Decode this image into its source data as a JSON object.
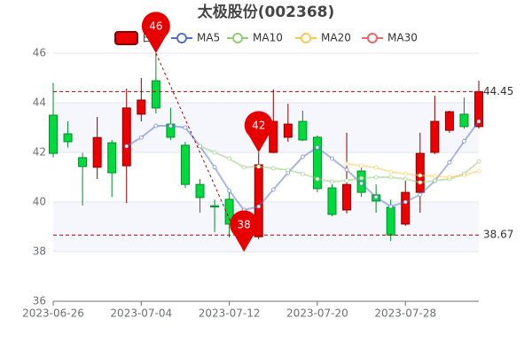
{
  "chart_data": {
    "type": "candlestick",
    "title": "太极股份(002368)",
    "categories": [
      "2023-06-26",
      null,
      null,
      null,
      null,
      null,
      "2023-07-04",
      null,
      null,
      null,
      null,
      null,
      "2023-07-12",
      null,
      null,
      null,
      null,
      null,
      "2023-07-20",
      null,
      null,
      null,
      null,
      null,
      "2023-07-28",
      null,
      null,
      null,
      null,
      null
    ],
    "series": [
      {
        "name": "日K",
        "up_color": "#ec0000",
        "up_border": "#8a0000",
        "down_color": "#00da3c",
        "down_border": "#008f28",
        "open": [
          43.5,
          42.75,
          41.79,
          41.4,
          42.39,
          41.46,
          43.54,
          44.89,
          43.14,
          42.29,
          40.71,
          39.85,
          40.11,
          39.2,
          38.6,
          42.0,
          42.61,
          43.25,
          42.61,
          40.57,
          39.68,
          41.25,
          40.29,
          39.79,
          39.11,
          40.39,
          42.0,
          42.89,
          43.54,
          43.04
        ],
        "close": [
          41.96,
          42.43,
          41.43,
          42.6,
          41.18,
          43.79,
          44.11,
          43.79,
          42.61,
          40.71,
          40.18,
          39.8,
          39.11,
          38.75,
          41.5,
          43.25,
          43.14,
          42.5,
          40.54,
          39.5,
          40.71,
          40.39,
          40.04,
          38.67,
          40.39,
          41.96,
          43.25,
          43.64,
          43.04,
          44.45
        ],
        "high": [
          44.8,
          43.25,
          41.98,
          43.43,
          42.5,
          44.57,
          45.0,
          46,
          43.8,
          42.43,
          40.93,
          40.1,
          40.46,
          39.3,
          42,
          44.54,
          43.96,
          43.68,
          42.68,
          40.71,
          42.79,
          41.5,
          40.71,
          40.1,
          41.0,
          42.79,
          44.29,
          43.68,
          44.21,
          44.89
        ],
        "low": [
          41.8,
          42.2,
          39.86,
          40.93,
          40.2,
          39.96,
          43.25,
          43.57,
          42.5,
          40.57,
          39.57,
          38.79,
          38.57,
          38,
          38.5,
          41.96,
          42.43,
          42.46,
          40.4,
          39.43,
          39.54,
          40.21,
          39.57,
          38.43,
          39.04,
          39.57,
          41.93,
          42.79,
          42.96,
          42.96
        ]
      }
    ],
    "ma_series": [
      {
        "name": "MA5",
        "color": "#5470c6",
        "values": [
          null,
          null,
          null,
          null,
          null,
          42.25,
          42.6,
          43.07,
          43.07,
          43.0,
          42.25,
          41.4,
          40.46,
          39.68,
          39.82,
          40.5,
          41.18,
          41.82,
          42.2,
          41.75,
          41.3,
          40.75,
          40.2,
          39.82,
          40.0,
          40.3,
          40.85,
          41.6,
          42.45,
          43.25
        ]
      },
      {
        "name": "MA10",
        "color": "#91cc75",
        "values": [
          null,
          null,
          null,
          null,
          null,
          null,
          null,
          null,
          null,
          null,
          42.25,
          42.0,
          41.75,
          41.4,
          41.43,
          41.36,
          41.29,
          41.14,
          40.93,
          40.82,
          40.86,
          40.96,
          41.0,
          41.0,
          40.93,
          40.79,
          40.86,
          40.93,
          41.14,
          41.64
        ]
      },
      {
        "name": "MA20",
        "color": "#fac858",
        "values": [
          null,
          null,
          null,
          null,
          null,
          null,
          null,
          null,
          null,
          null,
          null,
          null,
          null,
          null,
          null,
          null,
          null,
          null,
          null,
          null,
          41.54,
          41.46,
          41.39,
          41.21,
          41.14,
          41.07,
          41.04,
          41.0,
          41.07,
          41.25
        ]
      },
      {
        "name": "MA30",
        "color": "#ee6666",
        "values": [
          null,
          null,
          null,
          null,
          null,
          null,
          null,
          null,
          null,
          null,
          null,
          null,
          null,
          null,
          null,
          null,
          null,
          null,
          null,
          null,
          null,
          null,
          null,
          null,
          null,
          null,
          null,
          null,
          null,
          null
        ]
      }
    ],
    "mark_points": [
      46,
      38,
      42
    ],
    "mark_lines": [
      44.45,
      38.67
    ],
    "ylim": [
      36,
      46
    ],
    "yticks": [
      36,
      38,
      40,
      42,
      44,
      46
    ],
    "grid": true
  }
}
